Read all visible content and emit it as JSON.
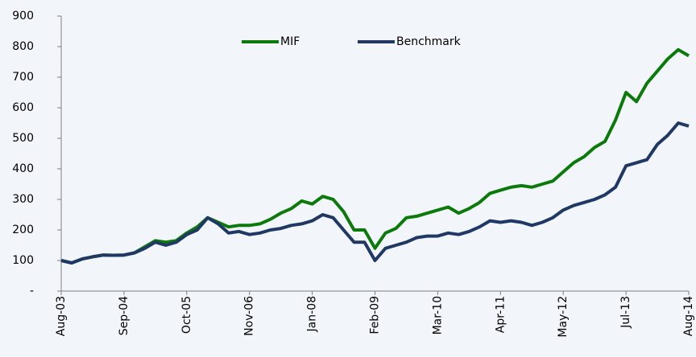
{
  "chart_data": {
    "type": "line",
    "categories": [
      "Aug-03",
      null,
      null,
      null,
      null,
      null,
      "Sep-04",
      null,
      null,
      null,
      null,
      null,
      "Oct-05",
      null,
      null,
      null,
      null,
      null,
      "Nov-06",
      null,
      null,
      null,
      null,
      null,
      "Jan-08",
      null,
      null,
      null,
      null,
      null,
      "Feb-09",
      null,
      null,
      null,
      null,
      null,
      "Mar-10",
      null,
      null,
      null,
      null,
      null,
      "Apr-11",
      null,
      null,
      null,
      null,
      null,
      "May-12",
      null,
      null,
      null,
      null,
      null,
      "Jul-13",
      null,
      null,
      null,
      null,
      null,
      "Aug-14"
    ],
    "series": [
      {
        "name": "MIF",
        "color": "#0b7a0b",
        "values": [
          100,
          92,
          105,
          112,
          118,
          117,
          118,
          125,
          145,
          165,
          160,
          165,
          190,
          210,
          240,
          225,
          210,
          215,
          215,
          220,
          235,
          255,
          270,
          295,
          285,
          310,
          300,
          260,
          200,
          200,
          140,
          190,
          205,
          240,
          245,
          255,
          265,
          275,
          255,
          270,
          290,
          320,
          330,
          340,
          345,
          340,
          350,
          360,
          390,
          420,
          440,
          470,
          490,
          560,
          650,
          620,
          680,
          720,
          760,
          790,
          770
        ]
      },
      {
        "name": "Benchmark",
        "color": "#1f3864",
        "values": [
          100,
          92,
          105,
          112,
          118,
          117,
          118,
          125,
          140,
          160,
          150,
          160,
          185,
          200,
          240,
          220,
          190,
          195,
          185,
          190,
          200,
          205,
          215,
          220,
          230,
          250,
          240,
          200,
          160,
          160,
          100,
          140,
          150,
          160,
          175,
          180,
          180,
          190,
          185,
          195,
          210,
          230,
          225,
          230,
          225,
          215,
          225,
          240,
          265,
          280,
          290,
          300,
          315,
          340,
          410,
          420,
          430,
          480,
          510,
          550,
          540
        ]
      }
    ],
    "ylim": [
      0,
      900
    ],
    "yticks": [
      {
        "value": 0,
        "label": "-"
      },
      100,
      200,
      300,
      400,
      500,
      600,
      700,
      800,
      900
    ],
    "grid": false,
    "legend": "top"
  }
}
